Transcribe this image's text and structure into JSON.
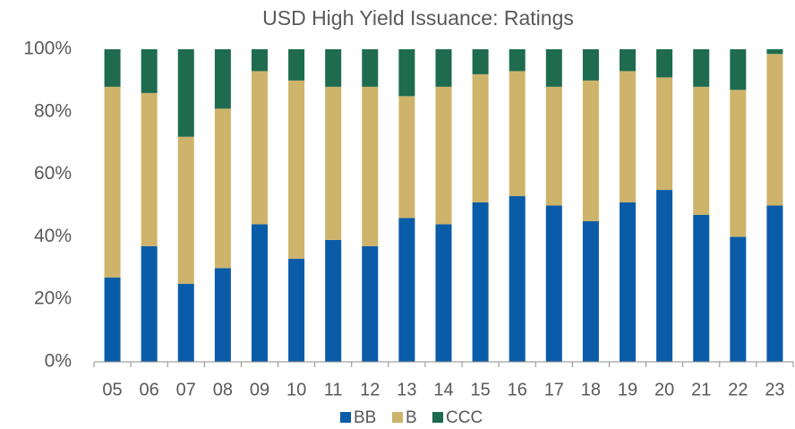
{
  "chart_data": {
    "type": "stacked_bar",
    "title": "USD High Yield Issuance: Ratings",
    "categories": [
      "05",
      "06",
      "07",
      "08",
      "09",
      "10",
      "11",
      "12",
      "13",
      "14",
      "15",
      "16",
      "17",
      "18",
      "19",
      "20",
      "21",
      "22",
      "23"
    ],
    "series": [
      {
        "name": "BB",
        "color": "#0a5ca8",
        "values": [
          27,
          37,
          25,
          30,
          44,
          33,
          39,
          37,
          46,
          44,
          51,
          53,
          50,
          45,
          51,
          55,
          47,
          40,
          50
        ]
      },
      {
        "name": "B",
        "color": "#cdb46a",
        "values": [
          61,
          49,
          47,
          51,
          49,
          57,
          49,
          51,
          39,
          44,
          41,
          40,
          38,
          45,
          42,
          36,
          41,
          47,
          48.5
        ]
      },
      {
        "name": "CCC",
        "color": "#1e6b4f",
        "values": [
          12,
          14,
          28,
          19,
          7,
          10,
          12,
          12,
          15,
          12,
          8,
          7,
          12,
          10,
          7,
          9,
          12,
          13,
          1.5
        ]
      }
    ],
    "ylim": [
      0,
      100
    ],
    "yticks": [
      {
        "value": 0,
        "label": "0%"
      },
      {
        "value": 20,
        "label": "20%"
      },
      {
        "value": 40,
        "label": "40%"
      },
      {
        "value": 60,
        "label": "60%"
      },
      {
        "value": 80,
        "label": "80%"
      },
      {
        "value": 100,
        "label": "100%"
      }
    ],
    "grid": false,
    "legend": "bottom"
  }
}
